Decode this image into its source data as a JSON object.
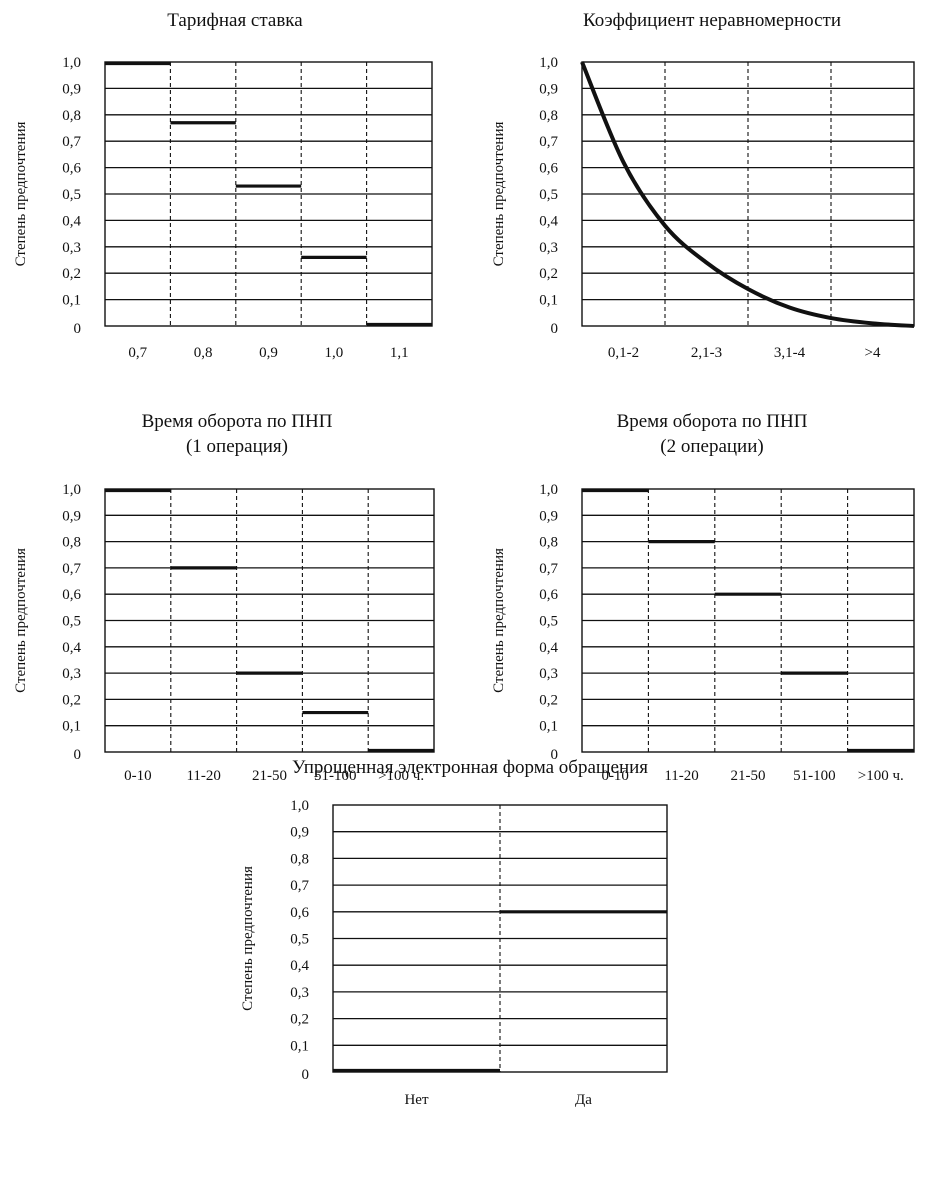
{
  "chart_data": [
    {
      "type": "line",
      "title_lines": [
        "Тарифная ставка"
      ],
      "ylabel": "Степень предпочтения",
      "xlabel": "",
      "ylim": [
        0,
        1
      ],
      "y_ticks": [
        "1,0",
        "0,9",
        "0,8",
        "0,7",
        "0,6",
        "0,5",
        "0,4",
        "0,3",
        "0,2",
        "0,1",
        "0"
      ],
      "grid": true,
      "style": "step",
      "categories": [
        "0,7",
        "0,8",
        "0,9",
        "1,0",
        "1,1"
      ],
      "values": [
        1.0,
        0.77,
        0.53,
        0.26,
        0.0
      ]
    },
    {
      "type": "line",
      "title_lines": [
        "Коэффициент неравномерности"
      ],
      "ylabel": "Степень предпочтения",
      "xlabel": "",
      "ylim": [
        0,
        1
      ],
      "y_ticks": [
        "1,0",
        "0,9",
        "0,8",
        "0,7",
        "0,6",
        "0,5",
        "0,4",
        "0,3",
        "0,2",
        "0,1",
        "0"
      ],
      "grid": true,
      "style": "curve",
      "categories": [
        "0,1-2",
        "2,1-3",
        "3,1-4",
        ">4"
      ],
      "x": [
        0,
        0.5,
        1,
        1.5,
        2,
        2.5,
        3,
        3.5,
        4
      ],
      "values": [
        1.0,
        0.62,
        0.38,
        0.24,
        0.14,
        0.07,
        0.03,
        0.01,
        0.0
      ]
    },
    {
      "type": "line",
      "title_lines": [
        "Время оборота по ПНП",
        "(1 операция)"
      ],
      "ylabel": "Степень предпочтения",
      "xlabel": "",
      "ylim": [
        0,
        1
      ],
      "y_ticks": [
        "1,0",
        "0,9",
        "0,8",
        "0,7",
        "0,6",
        "0,5",
        "0,4",
        "0,3",
        "0,2",
        "0,1",
        "0"
      ],
      "grid": true,
      "style": "step",
      "categories": [
        "0-10",
        "11-20",
        "21-50",
        "51-100",
        ">100 ч."
      ],
      "values": [
        1.0,
        0.7,
        0.3,
        0.15,
        0.0
      ]
    },
    {
      "type": "line",
      "title_lines": [
        "Время оборота по ПНП",
        "(2 операции)"
      ],
      "ylabel": "Степень предпочтения",
      "xlabel": "",
      "ylim": [
        0,
        1
      ],
      "y_ticks": [
        "1,0",
        "0,9",
        "0,8",
        "0,7",
        "0,6",
        "0,5",
        "0,4",
        "0,3",
        "0,2",
        "0,1",
        "0"
      ],
      "grid": true,
      "style": "step",
      "categories": [
        "0-10",
        "11-20",
        "21-50",
        "51-100",
        ">100 ч."
      ],
      "values": [
        1.0,
        0.8,
        0.6,
        0.3,
        0.0
      ]
    },
    {
      "type": "line",
      "title_lines": [
        "Упрощенная электронная форма обращения"
      ],
      "ylabel": "Степень предпочтения",
      "xlabel": "",
      "ylim": [
        0,
        1
      ],
      "y_ticks": [
        "1,0",
        "0,9",
        "0,8",
        "0,7",
        "0,6",
        "0,5",
        "0,4",
        "0,3",
        "0,2",
        "0,1",
        "0"
      ],
      "grid": true,
      "style": "step",
      "categories": [
        "Нет",
        "Да"
      ],
      "values": [
        0.0,
        0.6
      ]
    }
  ]
}
